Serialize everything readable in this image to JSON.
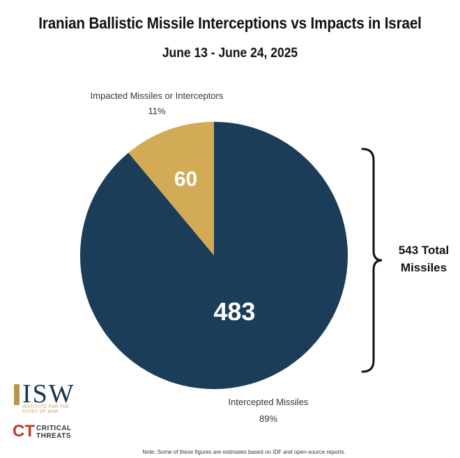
{
  "chart_data": {
    "type": "pie",
    "title": "Iranian Ballistic Missile Interceptions vs Impacts in Israel",
    "subtitle": "June 13 - June 24, 2025",
    "slices": [
      {
        "label": "Impacted Missiles or Interceptors",
        "value": 60,
        "percent_label": "11%",
        "color": "#d3aa55"
      },
      {
        "label": "Intercepted Missiles",
        "value": 483,
        "percent_label": "89%",
        "color": "#1b3d5a"
      }
    ],
    "total_label": "543 Total Missiles"
  },
  "logos": {
    "isw": "ISW",
    "isw_sub_line1": "INSTITUTE FOR THE",
    "isw_sub_line2": "STUDY OF WAR",
    "ct_mark": "CT",
    "ct_line1": "CRITICAL",
    "ct_line2": "THREATS"
  },
  "note": "Note: Some of these figures are estimates based on IDF and open-source reports."
}
